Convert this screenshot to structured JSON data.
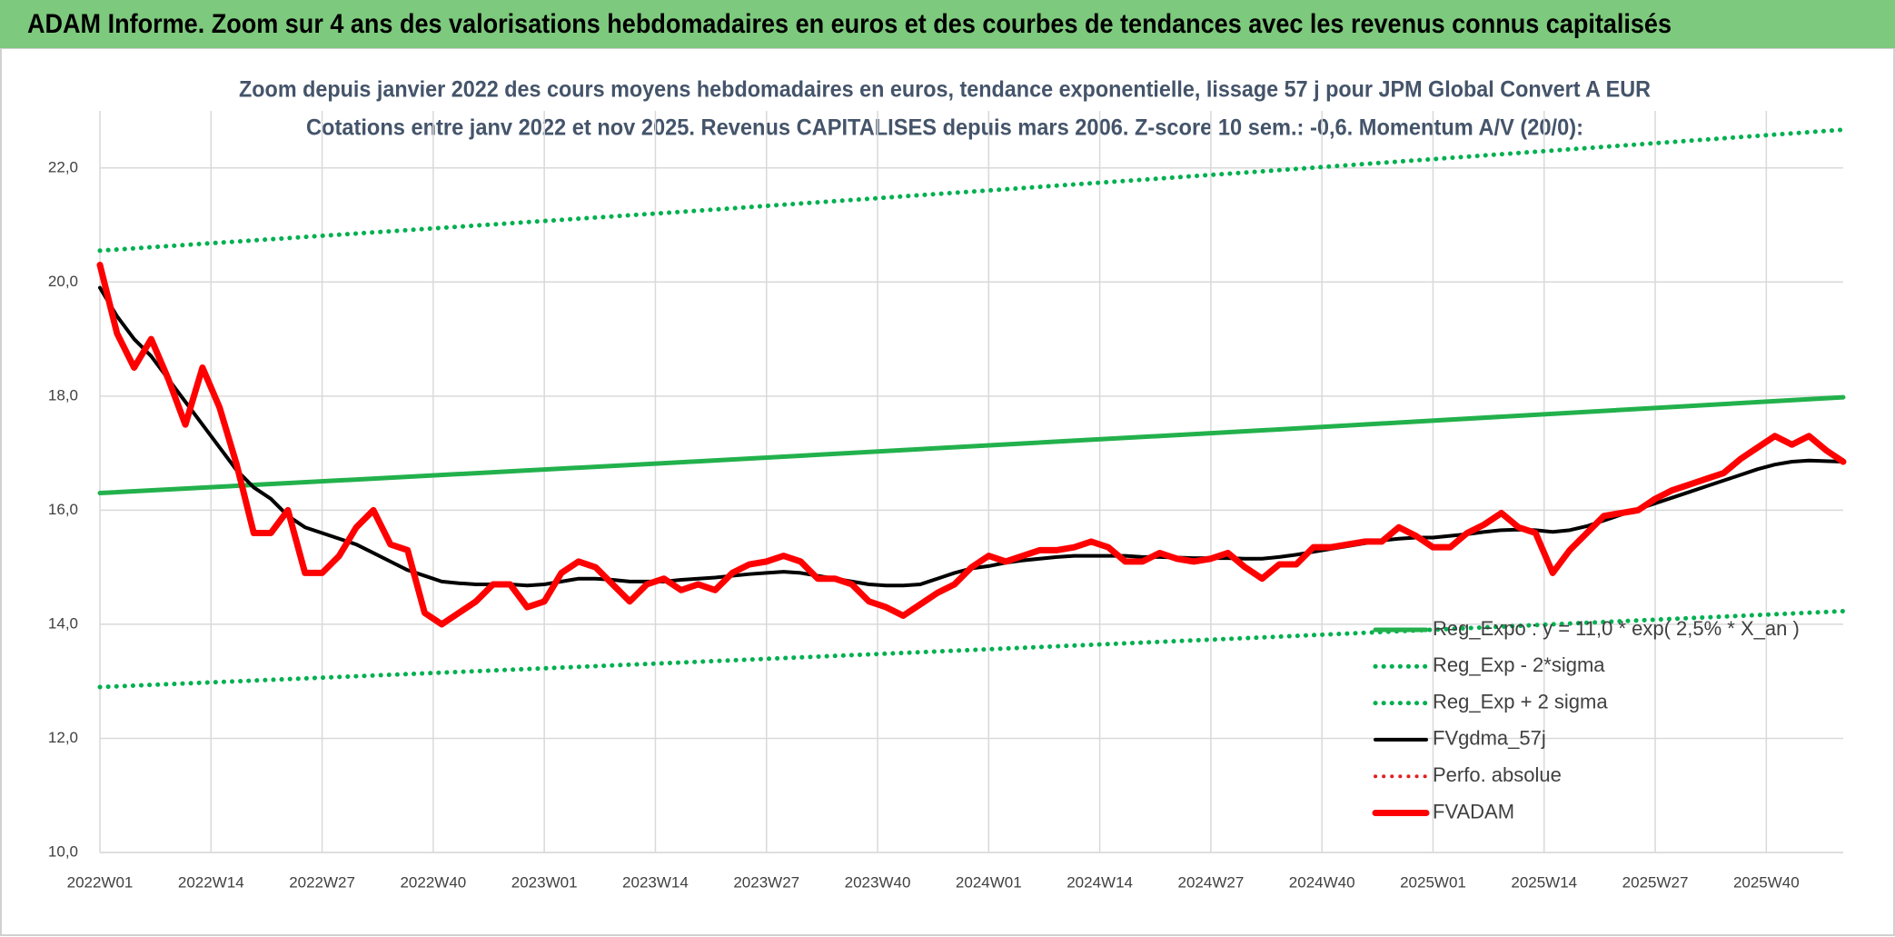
{
  "chart_data": {
    "type": "line",
    "title": "ADAM Informe. Zoom sur 4 ans des valorisations hebdomadaires en euros et des courbes de tendances avec les revenus connus capitalisés",
    "subtitle": [
      "Zoom depuis janvier 2022 des cours moyens hebdomadaires en euros, tendance exponentielle, lissage 57 j pour JPM Global Convert A EUR",
      "Cotations entre janv 2022 et nov 2025. Revenus CAPITALISES depuis mars 2006. Z-score 10 sem.: -0,6. Momentum A/V (20/0):"
    ],
    "x": [
      0,
      2,
      4,
      6,
      8,
      10,
      12,
      14,
      16,
      18,
      20,
      22,
      24,
      26,
      28,
      30,
      32,
      34,
      36,
      38,
      40,
      42,
      44,
      46,
      48,
      50,
      52,
      54,
      56,
      58,
      60,
      62,
      64,
      66,
      68,
      70,
      72,
      74,
      76,
      78,
      80,
      82,
      84,
      86,
      88,
      90,
      92,
      94,
      96,
      98,
      100,
      102,
      104,
      106,
      108,
      110,
      112,
      114,
      116,
      118,
      120,
      122,
      124,
      126,
      128,
      130,
      132,
      134,
      136,
      138,
      140,
      142,
      144,
      146,
      148,
      150,
      152,
      154,
      156,
      158,
      160,
      162,
      164,
      166,
      168,
      170,
      172,
      174,
      176,
      178,
      180,
      182,
      184,
      186,
      188,
      190,
      192,
      194,
      196,
      198,
      200,
      202,
      204
    ],
    "xlim": [
      0,
      204
    ],
    "xticks": [
      {
        "value": 0,
        "label": "2022W01"
      },
      {
        "value": 13,
        "label": "2022W14"
      },
      {
        "value": 26,
        "label": "2022W27"
      },
      {
        "value": 39,
        "label": "2022W40"
      },
      {
        "value": 52,
        "label": "2023W01"
      },
      {
        "value": 65,
        "label": "2023W14"
      },
      {
        "value": 78,
        "label": "2023W27"
      },
      {
        "value": 91,
        "label": "2023W40"
      },
      {
        "value": 104,
        "label": "2024W01"
      },
      {
        "value": 117,
        "label": "2024W14"
      },
      {
        "value": 130,
        "label": "2024W27"
      },
      {
        "value": 143,
        "label": "2024W40"
      },
      {
        "value": 156,
        "label": "2025W01"
      },
      {
        "value": 169,
        "label": "2025W14"
      },
      {
        "value": 182,
        "label": "2025W27"
      },
      {
        "value": 195,
        "label": "2025W40"
      }
    ],
    "ylim": [
      10,
      23
    ],
    "yticks": [
      {
        "value": 10,
        "label": "10,0"
      },
      {
        "value": 12,
        "label": "12,0"
      },
      {
        "value": 14,
        "label": "14,0"
      },
      {
        "value": 16,
        "label": "16,0"
      },
      {
        "value": 18,
        "label": "18,0"
      },
      {
        "value": 20,
        "label": "20,0"
      },
      {
        "value": 22,
        "label": "22,0"
      }
    ],
    "grid": true,
    "legend": "right",
    "series": [
      {
        "name": "Reg_Expo : y = 11,0 * exp( 2,5% *  X_an )",
        "color": "#22b14c",
        "dotted": false,
        "x": [
          0,
          68,
          136,
          204
        ],
        "values": [
          16.3,
          16.84,
          17.4,
          17.98
        ]
      },
      {
        "name": "Reg_Exp - 2*sigma",
        "color": "#00b050",
        "dotted": true,
        "x": [
          0,
          68,
          136,
          204
        ],
        "values": [
          12.9,
          13.33,
          13.77,
          14.23
        ]
      },
      {
        "name": "Reg_Exp + 2 sigma",
        "color": "#00b050",
        "dotted": true,
        "x": [
          0,
          68,
          136,
          204
        ],
        "values": [
          20.55,
          21.23,
          21.94,
          22.67
        ]
      },
      {
        "name": "FVgdma_57j",
        "color": "#000000",
        "dotted": false,
        "values": [
          19.9,
          19.4,
          19.0,
          18.7,
          18.3,
          17.9,
          17.5,
          17.1,
          16.7,
          16.4,
          16.2,
          15.9,
          15.7,
          15.6,
          15.5,
          15.4,
          15.25,
          15.1,
          14.95,
          14.85,
          14.75,
          14.72,
          14.7,
          14.7,
          14.7,
          14.68,
          14.7,
          14.75,
          14.8,
          14.8,
          14.78,
          14.75,
          14.75,
          14.75,
          14.78,
          14.8,
          14.82,
          14.85,
          14.88,
          14.9,
          14.92,
          14.9,
          14.85,
          14.8,
          14.75,
          14.7,
          14.68,
          14.68,
          14.7,
          14.8,
          14.9,
          14.98,
          15.02,
          15.08,
          15.12,
          15.15,
          15.18,
          15.2,
          15.2,
          15.2,
          15.2,
          15.18,
          15.18,
          15.17,
          15.16,
          15.16,
          15.16,
          15.15,
          15.15,
          15.18,
          15.22,
          15.27,
          15.32,
          15.37,
          15.42,
          15.47,
          15.5,
          15.52,
          15.52,
          15.55,
          15.58,
          15.62,
          15.65,
          15.66,
          15.65,
          15.62,
          15.65,
          15.72,
          15.82,
          15.92,
          16.02,
          16.12,
          16.22,
          16.32,
          16.42,
          16.52,
          16.62,
          16.72,
          16.8,
          16.85,
          16.87,
          16.86,
          16.85
        ]
      },
      {
        "name": "Perfo. absolue",
        "color": "#e02020",
        "dotted": true
      },
      {
        "name": "FVADAM",
        "color": "#ff0000",
        "dotted": false,
        "values": [
          20.3,
          19.1,
          18.5,
          19.0,
          18.3,
          17.5,
          18.5,
          17.8,
          16.8,
          15.6,
          15.6,
          16.0,
          14.9,
          14.9,
          15.2,
          15.7,
          16.0,
          15.4,
          15.3,
          14.2,
          14.0,
          14.2,
          14.4,
          14.7,
          14.7,
          14.3,
          14.4,
          14.9,
          15.1,
          15.0,
          14.7,
          14.4,
          14.7,
          14.8,
          14.6,
          14.7,
          14.6,
          14.9,
          15.05,
          15.1,
          15.2,
          15.1,
          14.8,
          14.8,
          14.7,
          14.4,
          14.3,
          14.15,
          14.35,
          14.55,
          14.7,
          15.0,
          15.2,
          15.1,
          15.2,
          15.3,
          15.3,
          15.35,
          15.45,
          15.35,
          15.1,
          15.1,
          15.25,
          15.15,
          15.1,
          15.15,
          15.25,
          15.0,
          14.8,
          15.05,
          15.05,
          15.35,
          15.35,
          15.4,
          15.45,
          15.45,
          15.7,
          15.55,
          15.35,
          15.35,
          15.6,
          15.75,
          15.95,
          15.7,
          15.6,
          14.9,
          15.3,
          15.6,
          15.9,
          15.95,
          16.0,
          16.2,
          16.35,
          16.45,
          16.55,
          16.65,
          16.9,
          17.1,
          17.3,
          17.15,
          17.3,
          17.05,
          16.85
        ]
      }
    ]
  }
}
